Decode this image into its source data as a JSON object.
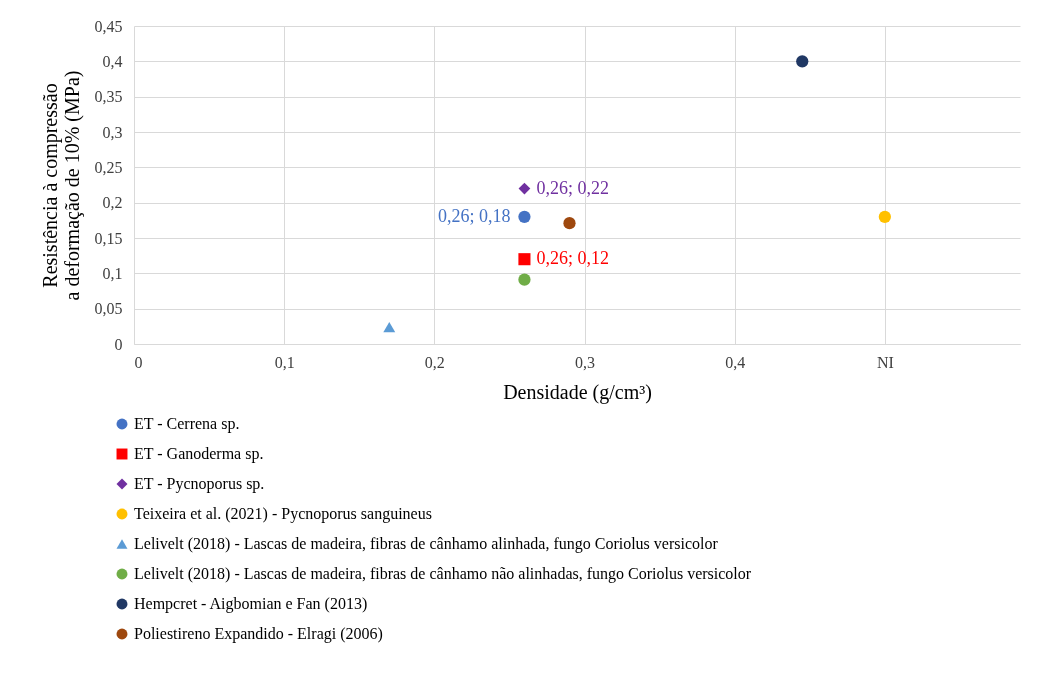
{
  "chart_data": {
    "type": "scatter",
    "xlabel": "Densidade (g/cm³)",
    "ylabel": "Resistência à compressão\na deformação de 10% (MPa)",
    "xlim": [
      0,
      0.59
    ],
    "xticks": [
      0,
      {
        "value": 0.1,
        "label": "0,1"
      },
      {
        "value": 0.2,
        "label": "0,2"
      },
      {
        "value": 0.3,
        "label": "0,3"
      },
      {
        "value": 0.4,
        "label": "0,4"
      },
      {
        "value": 0.5,
        "label": "NI"
      }
    ],
    "ylim": [
      0,
      0.45
    ],
    "yticks": [
      0,
      {
        "value": 0.05,
        "label": "0,05"
      },
      {
        "value": 0.1,
        "label": "0,1"
      },
      {
        "value": 0.15,
        "label": "0,15"
      },
      {
        "value": 0.2,
        "label": "0,2"
      },
      {
        "value": 0.25,
        "label": "0,25"
      },
      {
        "value": 0.3,
        "label": "0,3"
      },
      {
        "value": 0.35,
        "label": "0,35"
      },
      {
        "value": 0.4,
        "label": "0,4"
      },
      {
        "value": 0.45,
        "label": "0,45"
      }
    ],
    "grid": true,
    "legend": "bottom",
    "series": [
      {
        "name": "ET - Cerrena sp.",
        "color": "#4472c4",
        "marker": "circle",
        "x": [
          0.26
        ],
        "values": [
          0.18
        ],
        "value_labels": [
          "0,26; 0,18"
        ]
      },
      {
        "name": "ET - Ganoderma sp.",
        "color": "#ff0000",
        "marker": "square",
        "x": [
          0.26
        ],
        "values": [
          0.12
        ],
        "value_labels": [
          "0,26; 0,12"
        ]
      },
      {
        "name": "ET - Pycnoporus sp.",
        "color": "#7030a0",
        "marker": "diamond",
        "x": [
          0.26
        ],
        "values": [
          0.22
        ],
        "value_labels": [
          "0,26; 0,22"
        ]
      },
      {
        "name": "Teixeira et al. (2021) - Pycnoporus sanguineus",
        "color": "#ffc000",
        "marker": "circle",
        "x": [
          0.5
        ],
        "values": [
          0.18
        ]
      },
      {
        "name": "Lelivelt (2018) - Lascas de madeira, fibras de cânhamo alinhada, fungo Coriolus versicolor",
        "color": "#5b9bd5",
        "marker": "triangle",
        "x": [
          0.17
        ],
        "values": [
          0.024
        ]
      },
      {
        "name": "Lelivelt (2018) - Lascas de madeira, fibras de cânhamo não alinhadas, fungo Coriolus versicolor",
        "color": "#70ad47",
        "marker": "circle",
        "x": [
          0.26
        ],
        "values": [
          0.091
        ]
      },
      {
        "name": "Hempcret - Aigbomian e Fan (2013)",
        "color": "#203864",
        "marker": "circle",
        "x": [
          0.445
        ],
        "values": [
          0.4
        ]
      },
      {
        "name": "Poliestireno Expandido - Elragi (2006)",
        "color": "#9e480e",
        "marker": "circle",
        "x": [
          0.29
        ],
        "values": [
          0.171
        ]
      }
    ]
  }
}
